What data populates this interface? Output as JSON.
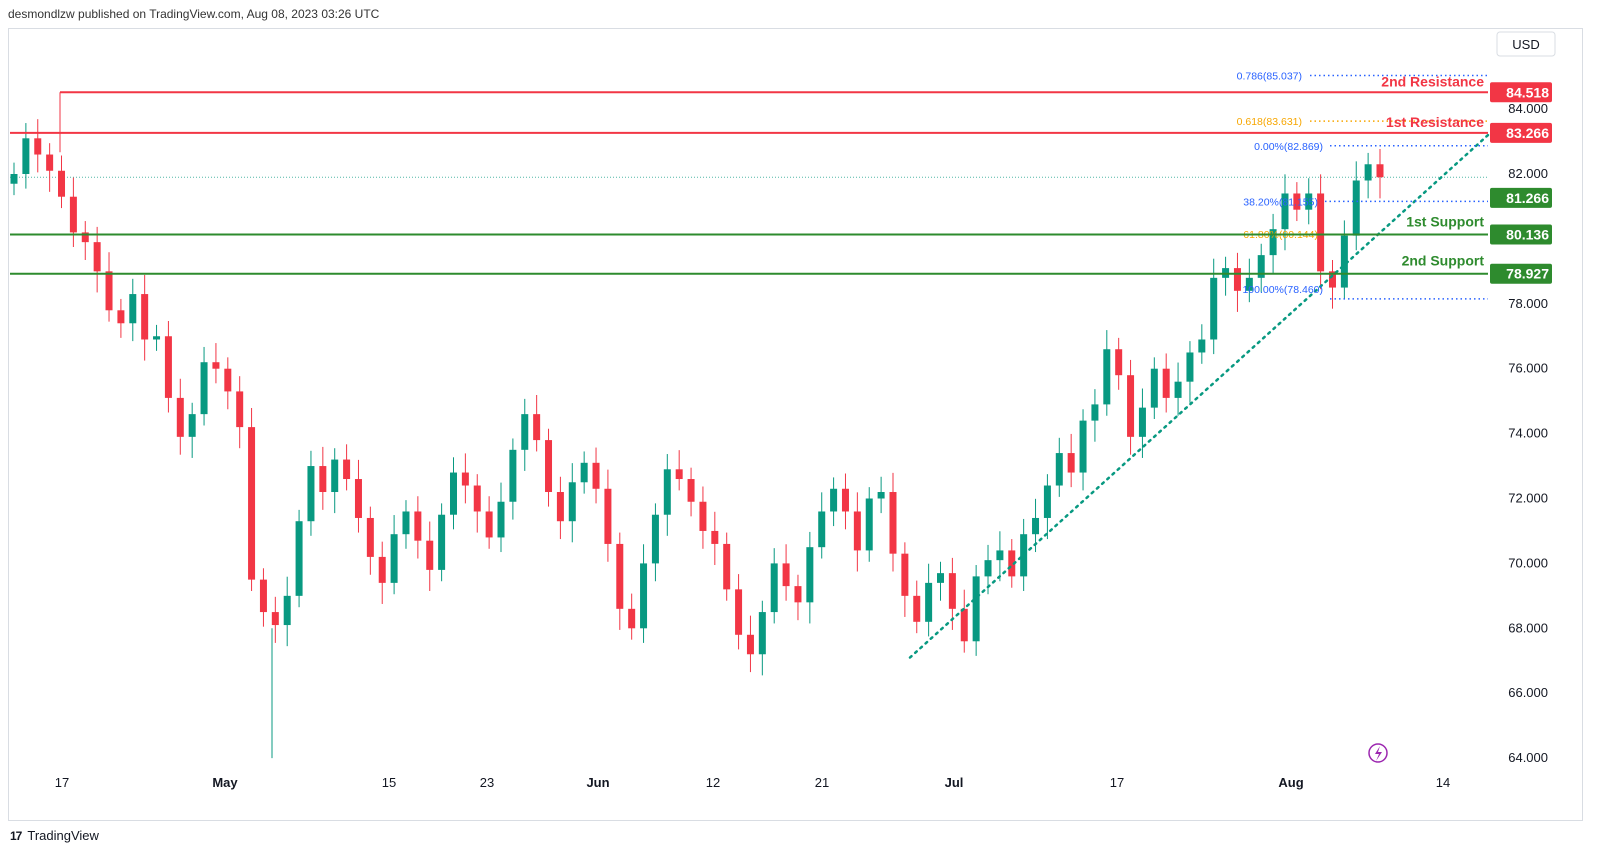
{
  "header": {
    "publisher_text": "desmondlzw published on TradingView.com, Aug 08, 2023 03:26 UTC"
  },
  "footer": {
    "brand": "TradingView",
    "logo_text": "17"
  },
  "colors": {
    "up": "#089981",
    "down": "#f23645",
    "resistance": "#f23645",
    "support": "#2e8b2e",
    "trend": "#089981",
    "fib_blue": "#2962ff",
    "fib_orange": "#f7a600",
    "axis_text": "#131722",
    "grid": "#e0e3eb"
  },
  "chart_data": {
    "type": "candlestick",
    "currency_label": "USD",
    "x_ticks": [
      "17",
      "May",
      "15",
      "23",
      "Jun",
      "12",
      "21",
      "Jul",
      "17",
      "Aug",
      "14"
    ],
    "y_ticks": [
      "84.000",
      "82.000",
      "80.000",
      "78.000",
      "76.000",
      "74.000",
      "72.000",
      "70.000",
      "68.000",
      "66.000",
      "64.000"
    ],
    "ylim": [
      63.5,
      85.8
    ],
    "series": [
      {
        "name": "",
        "values": [
          82.0,
          83.1,
          82.6,
          82.1,
          81.3,
          80.2,
          79.9,
          79.0,
          77.8,
          77.4,
          78.3,
          76.9,
          77.0,
          75.1,
          73.9,
          74.6,
          76.2,
          76.0,
          75.3,
          74.2,
          69.5,
          68.5,
          68.1,
          69.0,
          71.3,
          73.0,
          72.2,
          73.2,
          72.6,
          71.4,
          70.2,
          69.4,
          70.9,
          71.6,
          70.7,
          69.8,
          71.5,
          72.8,
          72.4,
          71.6,
          70.8,
          71.9,
          73.5,
          74.6,
          73.8,
          72.2,
          71.3,
          72.5,
          73.1,
          72.3,
          70.6,
          68.6,
          68.0,
          70.0,
          71.5,
          72.9,
          72.6,
          71.9,
          71.0,
          70.6,
          69.2,
          67.8,
          67.2,
          68.5,
          70.0,
          69.3,
          68.8,
          70.5,
          71.6,
          72.3,
          71.6,
          70.4,
          72.0,
          72.2,
          70.3,
          69.0,
          68.2,
          69.4,
          69.7,
          68.6,
          67.6,
          69.6,
          70.1,
          70.4,
          69.6,
          70.9,
          71.4,
          72.4,
          73.4,
          72.8,
          74.4,
          74.9,
          76.6,
          75.8,
          73.9,
          74.8,
          76.0,
          75.1,
          75.6,
          76.5,
          76.9,
          78.8,
          79.1,
          78.4,
          78.8,
          79.5,
          80.3,
          81.4,
          80.9,
          81.4,
          79.0,
          78.5,
          80.1,
          81.8,
          82.3,
          81.9
        ]
      },
      {
        "name": "1st Support",
        "values": [
          80.136
        ]
      },
      {
        "name": "2nd Support",
        "values": [
          78.927
        ]
      },
      {
        "name": "1st Resistance",
        "values": [
          83.266
        ]
      },
      {
        "name": "2nd Resistance",
        "values": [
          84.518
        ]
      }
    ],
    "current_price": 81.266,
    "levels": [
      {
        "name": "2nd Resistance",
        "value": 84.518,
        "label": "84.518",
        "kind": "resistance"
      },
      {
        "name": "1st Resistance",
        "value": 83.266,
        "label": "83.266",
        "kind": "resistance"
      },
      {
        "name": "",
        "value": 81.266,
        "label": "81.266",
        "kind": "current"
      },
      {
        "name": "1st Support",
        "value": 80.136,
        "label": "80.136",
        "kind": "support"
      },
      {
        "name": "2nd Support",
        "value": 78.927,
        "label": "78.927",
        "kind": "support"
      }
    ],
    "fib_labels": [
      {
        "text": "0.786(85.037)",
        "value": 85.037,
        "color": "blue"
      },
      {
        "text": "0.618(83.631)",
        "value": 83.631,
        "color": "orange"
      },
      {
        "text": "0.00%(82.869)",
        "value": 82.869,
        "color": "blue"
      },
      {
        "text": "38.20%(81.155)",
        "value": 81.155,
        "color": "blue"
      },
      {
        "text": "61.80%(80.144)",
        "value": 80.144,
        "color": "orange"
      },
      {
        "text": "100.00%(78.460)",
        "value": 78.46,
        "color": "blue"
      }
    ],
    "trendline": {
      "from_date": "Jun 28",
      "from_value": 67.1,
      "to_date": "Aug 11",
      "to_value": 83.2
    },
    "grid": false,
    "legend": "none"
  }
}
